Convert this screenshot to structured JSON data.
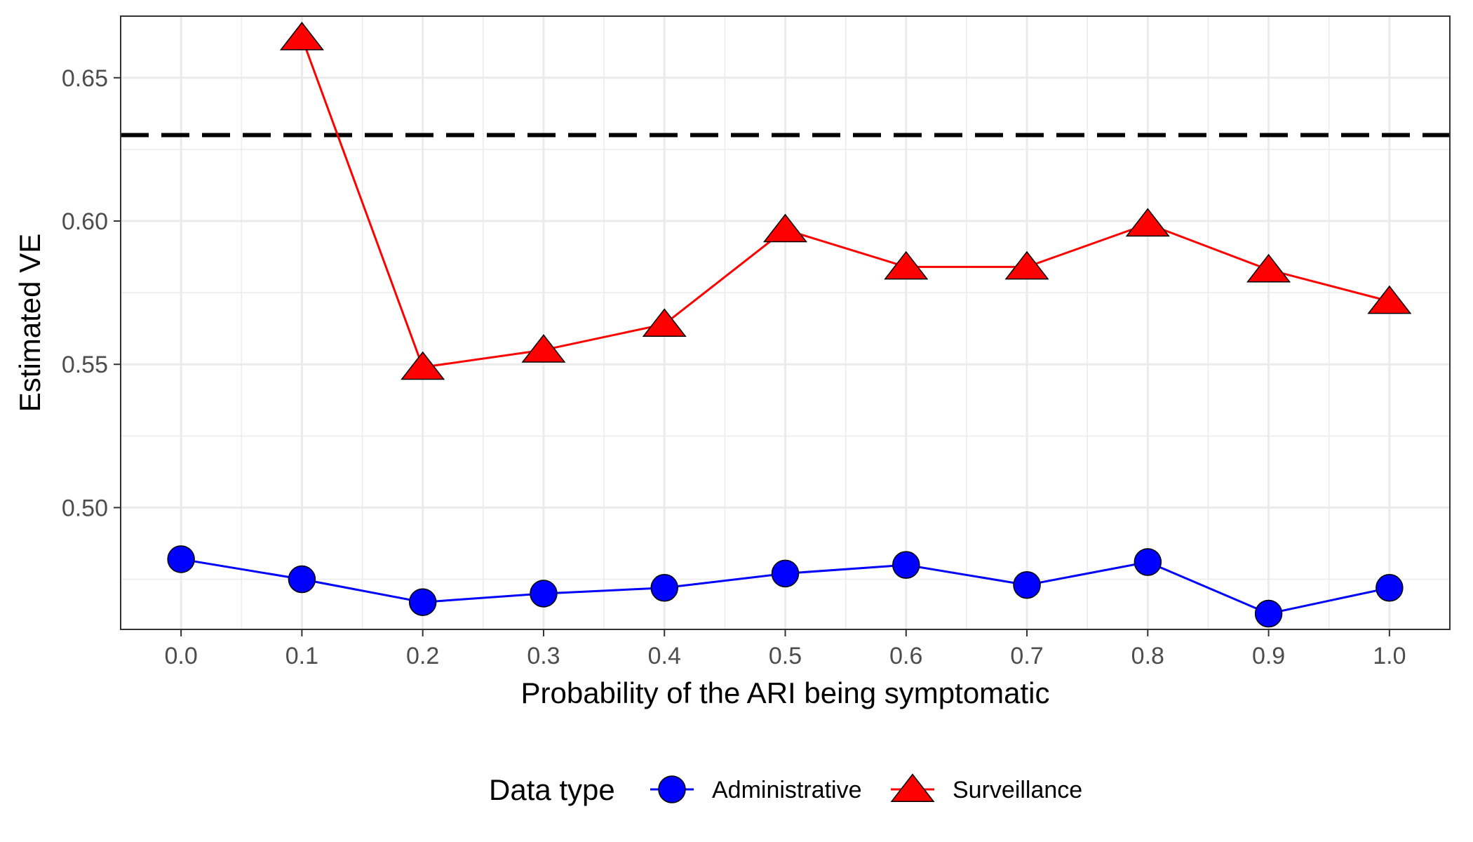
{
  "chart_data": {
    "type": "line",
    "title": "",
    "xlabel": "Probability of the ARI being symptomatic",
    "ylabel": "Estimated VE",
    "x": [
      0.0,
      0.1,
      0.2,
      0.3,
      0.4,
      0.5,
      0.6,
      0.7,
      0.8,
      0.9,
      1.0
    ],
    "x_tick_labels": [
      "0.0",
      "0.1",
      "0.2",
      "0.3",
      "0.4",
      "0.5",
      "0.6",
      "0.7",
      "0.8",
      "0.9",
      "1.0"
    ],
    "y_ticks": [
      0.5,
      0.55,
      0.6,
      0.65
    ],
    "y_tick_labels": [
      "0.50",
      "0.55",
      "0.60",
      "0.65"
    ],
    "xlim": [
      -0.05,
      1.05
    ],
    "ylim": [
      0.4575,
      0.6715
    ],
    "grid": true,
    "legend_position": "bottom",
    "legend_title": "Data type",
    "reference_line": {
      "y": 0.63,
      "style": "dashed",
      "color": "#000000"
    },
    "series": [
      {
        "name": "Administrative",
        "color": "#0000ff",
        "marker": "circle",
        "values": [
          0.482,
          0.475,
          0.467,
          0.47,
          0.472,
          0.477,
          0.48,
          0.473,
          0.481,
          0.463,
          0.472
        ]
      },
      {
        "name": "Surveillance",
        "color": "#ff0000",
        "marker": "triangle",
        "values": [
          null,
          0.664,
          0.549,
          0.555,
          0.564,
          0.597,
          0.584,
          0.584,
          0.599,
          0.583,
          0.572
        ]
      }
    ]
  }
}
